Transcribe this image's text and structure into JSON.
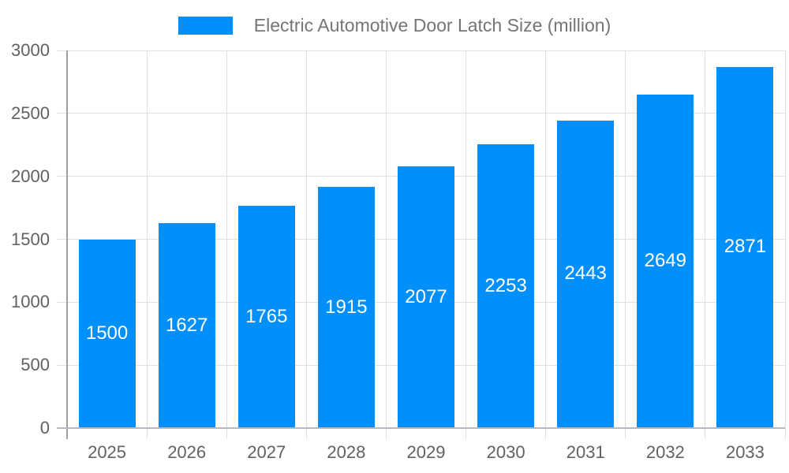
{
  "chart_data": {
    "type": "bar",
    "title": "Electric Automotive Door Latch Size (million)",
    "categories": [
      "2025",
      "2026",
      "2027",
      "2028",
      "2029",
      "2030",
      "2031",
      "2032",
      "2033"
    ],
    "values": [
      1500,
      1627,
      1765,
      1915,
      2077,
      2253,
      2443,
      2649,
      2871
    ],
    "xlabel": "",
    "ylabel": "",
    "ylim": [
      0,
      3000
    ],
    "ytick_step": 500,
    "ytick_labels": [
      "0",
      "500",
      "1000",
      "1500",
      "2000",
      "2500",
      "3000"
    ],
    "grid": true,
    "legend_position": "top",
    "value_labels_inside_bars": true
  },
  "colors": {
    "bar": "#008FFB",
    "grid": "#e0e0e0",
    "axis_line": "#9e9e9e",
    "baseline": "#b3b9be",
    "axis_text": "#616161",
    "legend_text": "#757575",
    "value_label_text": "#ffffff",
    "background": "#ffffff"
  }
}
